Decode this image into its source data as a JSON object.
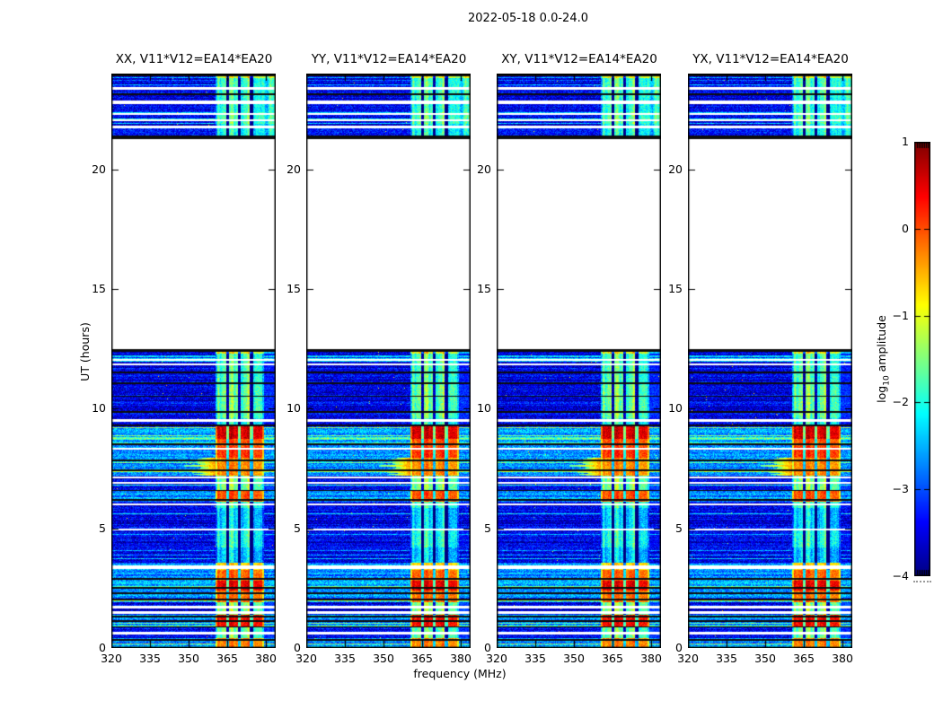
{
  "figure": {
    "title": "2022-05-18 0.0-24.0",
    "xlabel": "frequency (MHz)",
    "ylabel": "UT (hours)",
    "colorbar": {
      "label_pre": "log",
      "label_sub": "10",
      "label_post": " amplitude",
      "tick_values": [
        1,
        0,
        -1,
        -2,
        -3,
        -4
      ],
      "tick_labels": [
        "1",
        "0",
        "−1",
        "−2",
        "−3",
        "−4"
      ],
      "vmin": -4,
      "vmax": 1,
      "colormap": "jet"
    }
  },
  "chart_data": {
    "type": "heatmap",
    "panels": [
      {
        "title": "XX, V11*V12=EA14*EA20"
      },
      {
        "title": "YY, V11*V12=EA14*EA20"
      },
      {
        "title": "XY, V11*V12=EA14*EA20"
      },
      {
        "title": "YX, V11*V12=EA14*EA20"
      }
    ],
    "x": {
      "label": "frequency (MHz)",
      "range": [
        320,
        384
      ],
      "ticks": [
        320,
        335,
        350,
        365,
        380
      ]
    },
    "y": {
      "label": "UT (hours)",
      "range": [
        0,
        24
      ],
      "ticks": [
        0,
        5,
        10,
        15,
        20
      ]
    },
    "amplitude_scale": {
      "label": "log10 amplitude",
      "range": [
        -4,
        1
      ]
    },
    "coverage_hours": [
      [
        0,
        12.48
      ],
      [
        21.27,
        24.0
      ]
    ],
    "background_log_amp": -3.45,
    "rfi_band_mhz": [
      360.5,
      379.5
    ],
    "subband_gaps_mhz": [
      365.2,
      369.9,
      374.6
    ],
    "band_events": [
      [
        23.82,
        24.0,
        -1.1,
        0
      ],
      [
        23.0,
        23.82,
        -1.9,
        0
      ],
      [
        22.4,
        23.0,
        -2.0,
        0
      ],
      [
        21.9,
        22.4,
        -1.8,
        0
      ],
      [
        21.27,
        21.9,
        -2.1,
        0
      ],
      [
        12.3,
        12.48,
        -0.9,
        0
      ],
      [
        11.0,
        12.3,
        -1.85,
        0
      ],
      [
        9.6,
        11.0,
        -1.7,
        0
      ],
      [
        9.3,
        9.6,
        -2.1,
        0
      ],
      [
        8.75,
        9.3,
        0.55,
        1
      ],
      [
        8.4,
        8.75,
        -0.05,
        1
      ],
      [
        7.95,
        8.4,
        0.1,
        1
      ],
      [
        7.2,
        7.95,
        -0.35,
        1,
        352
      ],
      [
        6.55,
        7.2,
        -1.6,
        0
      ],
      [
        6.1,
        6.55,
        -0.05,
        1
      ],
      [
        5.85,
        6.1,
        -1.9,
        0
      ],
      [
        4.95,
        5.85,
        -2.4,
        0
      ],
      [
        4.2,
        4.95,
        -2.05,
        0
      ],
      [
        3.55,
        4.2,
        -2.45,
        0
      ],
      [
        3.25,
        3.55,
        -0.7,
        1
      ],
      [
        2.8,
        3.25,
        -0.15,
        1
      ],
      [
        2.4,
        2.8,
        0.45,
        1
      ],
      [
        1.9,
        2.4,
        -0.2,
        1
      ],
      [
        1.4,
        1.9,
        -1.55,
        0
      ],
      [
        0.9,
        1.4,
        0.35,
        1
      ],
      [
        0.42,
        0.9,
        -1.7,
        0
      ],
      [
        0.05,
        0.42,
        -0.3,
        1
      ],
      [
        0.0,
        0.05,
        -1.5,
        0
      ]
    ],
    "white_gaps_hours": [
      [
        0.58,
        0.68
      ],
      [
        1.42,
        1.52
      ],
      [
        1.65,
        1.76
      ],
      [
        3.3,
        3.44
      ],
      [
        4.9,
        5.0
      ],
      [
        5.95,
        6.04
      ],
      [
        6.86,
        6.95
      ],
      [
        7.08,
        7.16
      ],
      [
        8.28,
        8.38
      ],
      [
        9.45,
        9.55
      ],
      [
        11.8,
        11.9
      ],
      [
        12.0,
        12.09
      ],
      [
        21.73,
        21.82
      ],
      [
        22.02,
        22.1
      ],
      [
        22.28,
        22.36
      ],
      [
        22.72,
        22.86
      ],
      [
        23.33,
        23.42
      ]
    ],
    "black_lines_hours": [
      0.35,
      0.88,
      1.12,
      1.3,
      2.02,
      2.28,
      2.52,
      2.88,
      6.2,
      6.58,
      7.43,
      7.83,
      8.52,
      9.3,
      9.86,
      10.52,
      11.05,
      11.52,
      21.38,
      23.13
    ]
  }
}
